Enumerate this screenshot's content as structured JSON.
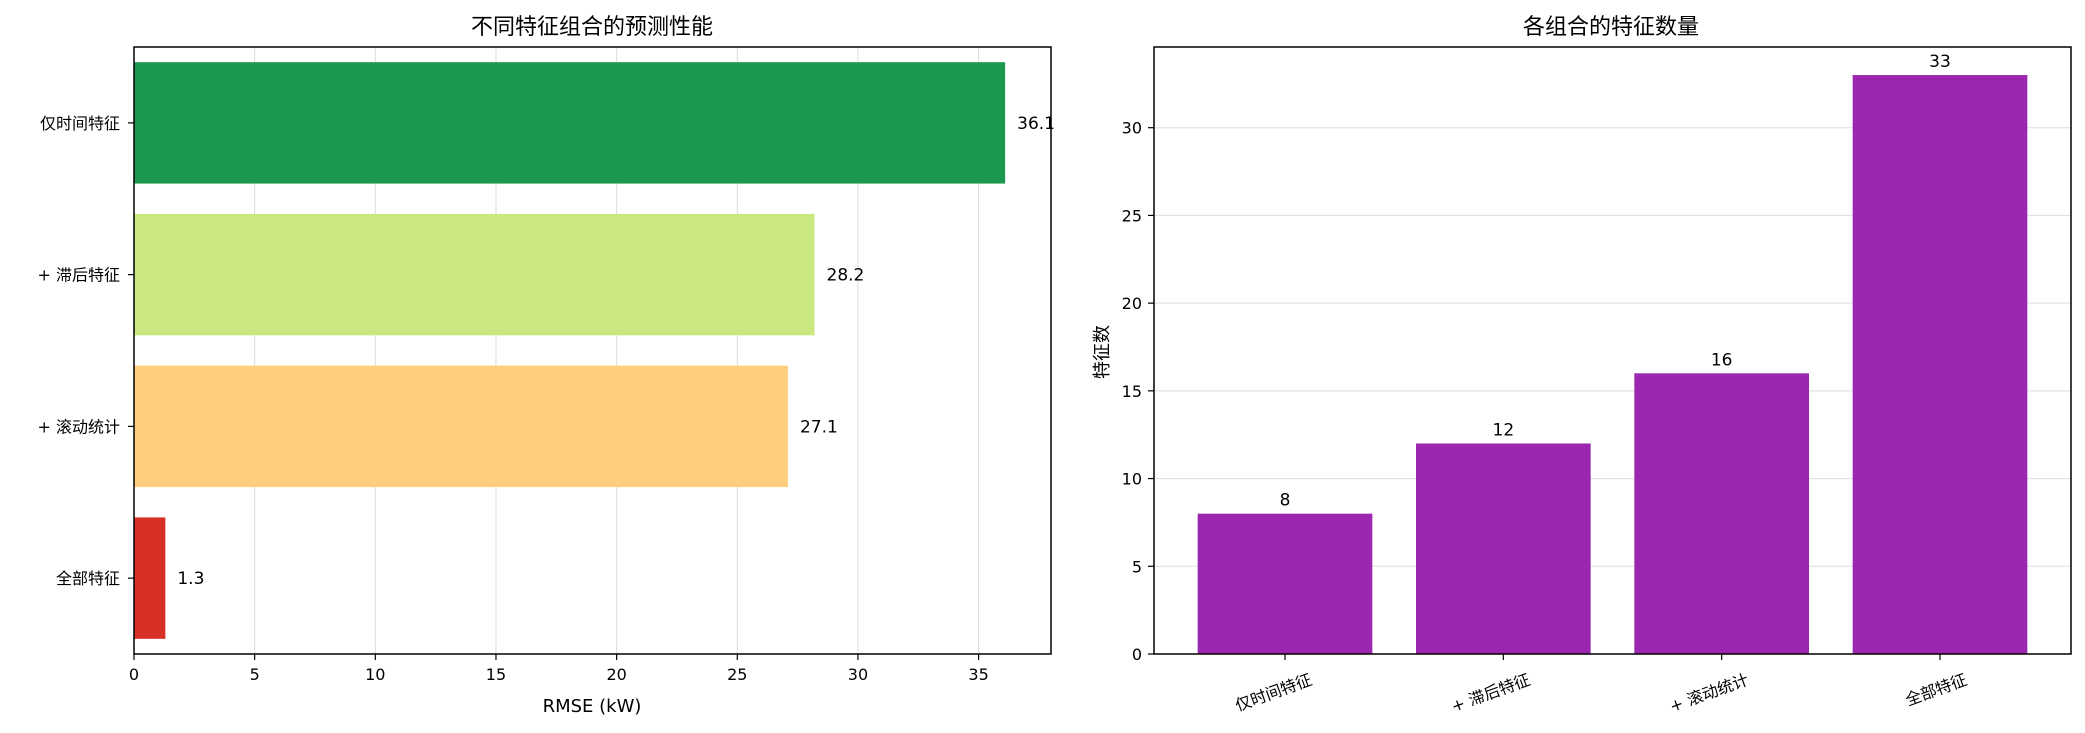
{
  "chart_data": [
    {
      "type": "bar",
      "orientation": "horizontal",
      "title": "不同特征组合的预测性能",
      "xlabel": "RMSE (kW)",
      "ylabel": "",
      "categories": [
        "仅时间特征",
        "+ 滞后特征",
        "+ 滚动统计",
        "全部特征"
      ],
      "values": [
        36.1,
        28.2,
        27.1,
        1.3
      ],
      "data_labels": [
        "36.1",
        "28.2",
        "27.1",
        "1.3"
      ],
      "colors": [
        "#1a9850",
        "#c9e87f",
        "#fecd7e",
        "#d73027"
      ],
      "xlim": [
        0,
        38
      ],
      "xticks": [
        0,
        5,
        10,
        15,
        20,
        25,
        30,
        35
      ],
      "grid": true
    },
    {
      "type": "bar",
      "orientation": "vertical",
      "title": "各组合的特征数量",
      "xlabel": "",
      "ylabel": "特征数",
      "categories": [
        "仅时间特征",
        "+ 滞后特征",
        "+ 滚动统计",
        "全部特征"
      ],
      "values": [
        8,
        12,
        16,
        33
      ],
      "data_labels": [
        "8",
        "12",
        "16",
        "33"
      ],
      "color": "#9b27b0",
      "ylim": [
        0,
        34.6
      ],
      "yticks": [
        0,
        5,
        10,
        15,
        20,
        25,
        30
      ],
      "grid": true
    }
  ]
}
